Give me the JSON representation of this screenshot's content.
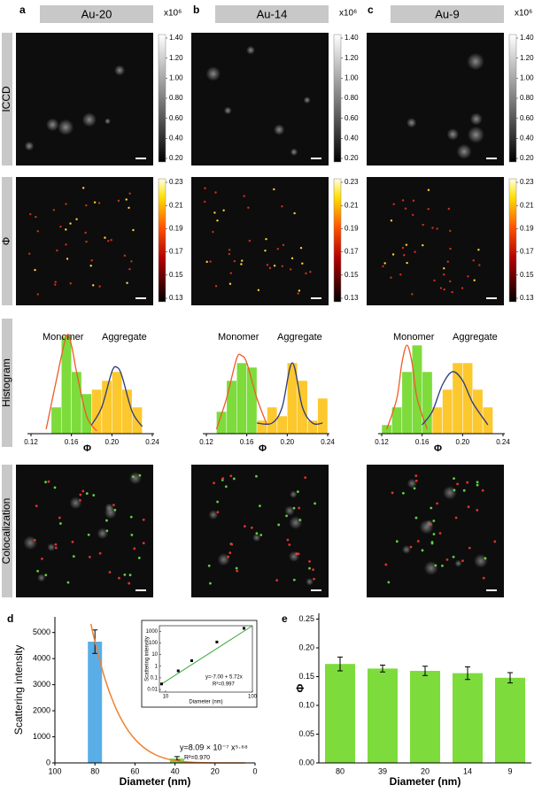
{
  "panel_letters": [
    "a",
    "b",
    "c",
    "d",
    "e"
  ],
  "column_headers": [
    "Au-20",
    "Au-14",
    "Au-9"
  ],
  "row_labels": [
    "ICCD",
    "Φ",
    "Histogram",
    "Colocalization"
  ],
  "colorbars": [
    {
      "label": "x10⁶",
      "colormap": "gray",
      "lim": [
        0.2,
        1.4
      ],
      "ticks": [
        {
          "value": 1.4,
          "label": "1.40"
        },
        {
          "value": 1.2,
          "label": "1.20"
        },
        {
          "value": 1.0,
          "label": "1.00"
        },
        {
          "value": 0.8,
          "label": "0.80"
        },
        {
          "value": 0.6,
          "label": "0.60"
        },
        {
          "value": 0.4,
          "label": "0.40"
        },
        {
          "value": 0.2,
          "label": "0.20"
        }
      ]
    },
    {
      "colormap": "hot",
      "lim": [
        0.13,
        0.23
      ],
      "ticks": [
        0.23,
        0.21,
        0.19,
        0.17,
        0.15,
        0.13
      ]
    }
  ],
  "chart_data": [
    {
      "type": "histogram",
      "xlabel": "Φ",
      "xlim": [
        0.12,
        0.24
      ],
      "ylim": [
        0,
        12
      ],
      "xticks": [
        0.12,
        0.16,
        {
          "value": 0.2,
          "label": "0.20"
        },
        0.24
      ],
      "series": [
        {
          "name": "Monomer",
          "color": "#7ddc3c",
          "bins": [
            0.14,
            0.15,
            0.16,
            0.17,
            0.18
          ],
          "values": [
            3,
            11,
            7,
            4.5
          ]
        },
        {
          "name": "Aggregate",
          "color": "#fcc82e",
          "bins": [
            0.18,
            0.19,
            0.2,
            0.21,
            0.22,
            0.23
          ],
          "values": [
            5,
            6,
            7,
            5,
            3
          ]
        }
      ],
      "fits": [
        {
          "color": "#f05a28",
          "x": [
            0.135,
            0.145,
            0.155,
            0.16,
            0.165,
            0.175,
            0.185
          ],
          "values": [
            0.5,
            6,
            11,
            10,
            7,
            2,
            0.3
          ]
        },
        {
          "color": "#2a3a80",
          "x": [
            0.18,
            0.19,
            0.2,
            0.205,
            0.21,
            0.22,
            0.23
          ],
          "values": [
            1,
            3,
            7,
            7.5,
            6.5,
            2.5,
            0.8
          ]
        }
      ]
    },
    {
      "type": "histogram",
      "xlabel": "Φ",
      "xlim": [
        0.12,
        0.24
      ],
      "ylim": [
        0,
        12
      ],
      "xticks": [
        0.12,
        0.16,
        {
          "value": 0.2,
          "label": "0.20"
        },
        0.24
      ],
      "series": [
        {
          "name": "Monomer",
          "color": "#7ddc3c",
          "bins": [
            0.13,
            0.14,
            0.15,
            0.16,
            0.17
          ],
          "values": [
            2.5,
            6,
            8,
            7.5
          ]
        },
        {
          "name": "Aggregate",
          "color": "#fcc82e",
          "bins": [
            0.17,
            0.18,
            0.19,
            0.2,
            0.21,
            0.22,
            0.23,
            0.24
          ],
          "values": [
            1.5,
            3,
            2,
            8,
            6,
            1.5,
            4
          ]
        }
      ],
      "fits": [
        {
          "color": "#f05a28",
          "x": [
            0.13,
            0.14,
            0.15,
            0.155,
            0.16,
            0.17,
            0.18
          ],
          "values": [
            0.5,
            4,
            8.5,
            8.8,
            8,
            4,
            1
          ]
        },
        {
          "color": "#2a3a80",
          "x": [
            0.17,
            0.185,
            0.195,
            0.205,
            0.215,
            0.225,
            0.235
          ],
          "values": [
            1.2,
            1.2,
            3,
            8,
            3,
            1.2,
            1.2
          ]
        }
      ]
    },
    {
      "type": "histogram",
      "xlabel": "Φ",
      "xlim": [
        0.12,
        0.24
      ],
      "ylim": [
        0,
        12
      ],
      "xticks": [
        0.12,
        0.16,
        {
          "value": 0.2,
          "label": "0.20"
        },
        0.24
      ],
      "series": [
        {
          "name": "Monomer",
          "color": "#7ddc3c",
          "bins": [
            0.12,
            0.13,
            0.14,
            0.15,
            0.16,
            0.17
          ],
          "values": [
            1,
            3,
            7,
            10,
            7
          ]
        },
        {
          "name": "Aggregate",
          "color": "#fcc82e",
          "bins": [
            0.17,
            0.18,
            0.19,
            0.2,
            0.21,
            0.22,
            0.23
          ],
          "values": [
            3,
            5,
            8,
            8,
            5,
            3
          ]
        }
      ],
      "fits": [
        {
          "color": "#f05a28",
          "x": [
            0.125,
            0.135,
            0.14,
            0.145,
            0.15,
            0.155,
            0.165
          ],
          "values": [
            0.5,
            4,
            8,
            10,
            8,
            4,
            0.5
          ]
        },
        {
          "color": "#2a3a80",
          "x": [
            0.16,
            0.17,
            0.18,
            0.19,
            0.2,
            0.21,
            0.225
          ],
          "values": [
            1,
            2.5,
            5.5,
            7,
            6,
            3.5,
            1
          ]
        }
      ]
    },
    {
      "type": "bar",
      "xlabel": "Diameter (nm)",
      "ylabel": "Scattering intensity",
      "xlim": [
        100,
        0
      ],
      "xticks": [
        100,
        80,
        60,
        40,
        20,
        0
      ],
      "ylim": [
        0,
        5600
      ],
      "yticks": [
        0,
        1000,
        2000,
        3000,
        4000,
        5000
      ],
      "x": [
        80,
        39
      ],
      "values": [
        4650,
        170
      ],
      "errors": [
        450,
        70
      ],
      "colors": [
        "#5aaee8",
        "#7dd84a"
      ],
      "fit": {
        "color": "#f08030",
        "x": [
          82,
          80,
          75,
          70,
          65,
          60,
          55,
          50,
          45,
          40,
          35,
          30,
          20,
          10,
          5
        ],
        "values": [
          5330,
          4650,
          3225,
          2180,
          1430,
          907,
          555,
          322,
          175,
          91,
          43,
          17,
          2,
          0,
          0
        ]
      },
      "annotations": [
        "y=8.09 × 10⁻⁷ x⁵·⁶⁸",
        "R²=0.970"
      ]
    },
    {
      "type": "scatter",
      "xlabel": "Diameter (nm)",
      "ylabel": "Scattering intensity",
      "log": true,
      "xlim": [
        8.5,
        100
      ],
      "xticks": [
        10,
        100
      ],
      "ylim": [
        0.006,
        3000
      ],
      "yticks": [
        0.01,
        0.1,
        1,
        10,
        100,
        1000
      ],
      "x": [
        9,
        14,
        20,
        39,
        80
      ],
      "values": [
        0.03,
        0.4,
        3,
        120,
        1800
      ],
      "color": "#000000",
      "fit": {
        "color": "#3aa83a",
        "x": [
          9,
          100
        ],
        "values": [
          0.03,
          3000
        ]
      },
      "annotations": [
        "y=-7.00 + 5.72x",
        "R²=0.997"
      ]
    },
    {
      "type": "bar",
      "xlabel": "Diameter (nm)",
      "ylabel": "Φ",
      "categories": [
        "80",
        "39",
        "20",
        "14",
        "9"
      ],
      "values": [
        0.172,
        0.164,
        0.16,
        0.156,
        0.148
      ],
      "errors": [
        0.012,
        0.006,
        0.008,
        0.011,
        0.009
      ],
      "color": "#7ddc3c",
      "ylim": [
        0,
        0.26
      ],
      "yticks": [
        {
          "value": 0,
          "label": "0.00"
        },
        0.05,
        {
          "value": 0.1,
          "label": "0.10"
        },
        0.15,
        {
          "value": 0.2,
          "label": "0.20"
        },
        0.25
      ]
    }
  ]
}
